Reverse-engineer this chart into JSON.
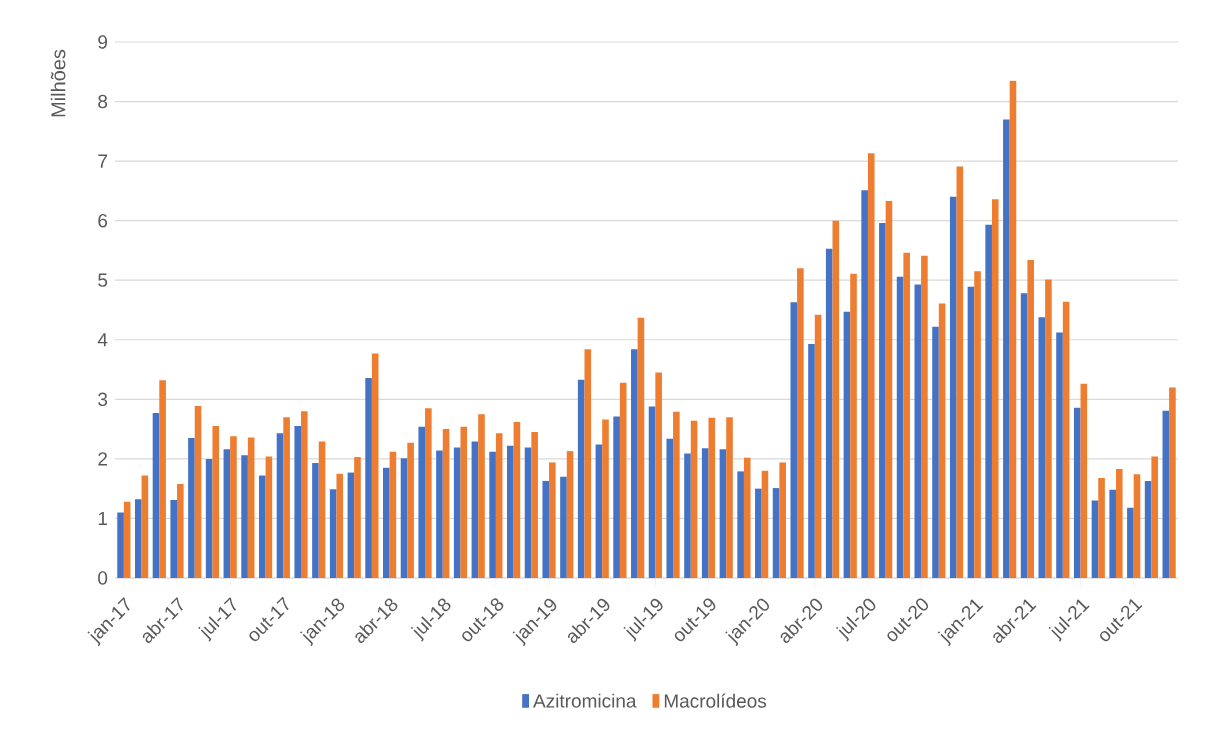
{
  "chart_data": {
    "type": "bar",
    "ylabel": "Milhões",
    "categories": [
      "jan-17",
      null,
      null,
      "abr-17",
      null,
      null,
      "jul-17",
      null,
      null,
      "out-17",
      null,
      null,
      "jan-18",
      null,
      null,
      "abr-18",
      null,
      null,
      "jul-18",
      null,
      null,
      "out-18",
      null,
      null,
      "jan-19",
      null,
      null,
      "abr-19",
      null,
      null,
      "jul-19",
      null,
      null,
      "out-19",
      null,
      null,
      "jan-20",
      null,
      null,
      "abr-20",
      null,
      null,
      "jul-20",
      null,
      null,
      "out-20",
      null,
      null,
      "jan-21",
      null,
      null,
      "abr-21",
      null,
      null,
      "jul-21",
      null,
      null,
      "out-21",
      null,
      null
    ],
    "series": [
      {
        "name": "Azitromicina",
        "color": "#4472c4",
        "values": [
          1.1,
          1.32,
          2.77,
          1.31,
          2.35,
          2.0,
          2.16,
          2.06,
          1.72,
          2.43,
          2.55,
          1.93,
          1.49,
          1.77,
          3.36,
          1.85,
          2.01,
          2.54,
          2.14,
          2.19,
          2.29,
          2.12,
          2.22,
          2.19,
          1.63,
          1.7,
          3.33,
          2.24,
          2.71,
          3.84,
          2.88,
          2.34,
          2.09,
          2.18,
          2.16,
          1.79,
          1.5,
          1.51,
          4.63,
          3.93,
          5.53,
          4.47,
          6.51,
          5.96,
          5.06,
          4.93,
          4.22,
          6.4,
          4.89,
          5.93,
          7.7,
          4.78,
          4.38,
          4.12,
          2.86,
          1.3,
          1.48,
          1.18,
          1.63,
          2.81
        ]
      },
      {
        "name": "Macrolídeos",
        "color": "#ed7d31",
        "values": [
          1.28,
          1.72,
          3.32,
          1.58,
          2.89,
          2.55,
          2.38,
          2.36,
          2.04,
          2.7,
          2.8,
          2.29,
          1.75,
          2.03,
          3.77,
          2.12,
          2.27,
          2.85,
          2.5,
          2.54,
          2.75,
          2.43,
          2.62,
          2.45,
          1.94,
          2.13,
          3.84,
          2.66,
          3.28,
          4.37,
          3.45,
          2.79,
          2.64,
          2.69,
          2.7,
          2.02,
          1.8,
          1.94,
          5.2,
          4.42,
          6.0,
          5.11,
          7.13,
          6.33,
          5.46,
          5.41,
          4.61,
          6.91,
          5.15,
          6.36,
          8.35,
          5.34,
          5.01,
          4.64,
          3.26,
          1.68,
          1.83,
          1.74,
          2.04,
          3.2
        ]
      }
    ],
    "ylim": [
      0,
      9
    ],
    "yticks": [
      0,
      1,
      2,
      3,
      4,
      5,
      6,
      7,
      8,
      9
    ],
    "grid": "y",
    "legend": "bottom"
  }
}
